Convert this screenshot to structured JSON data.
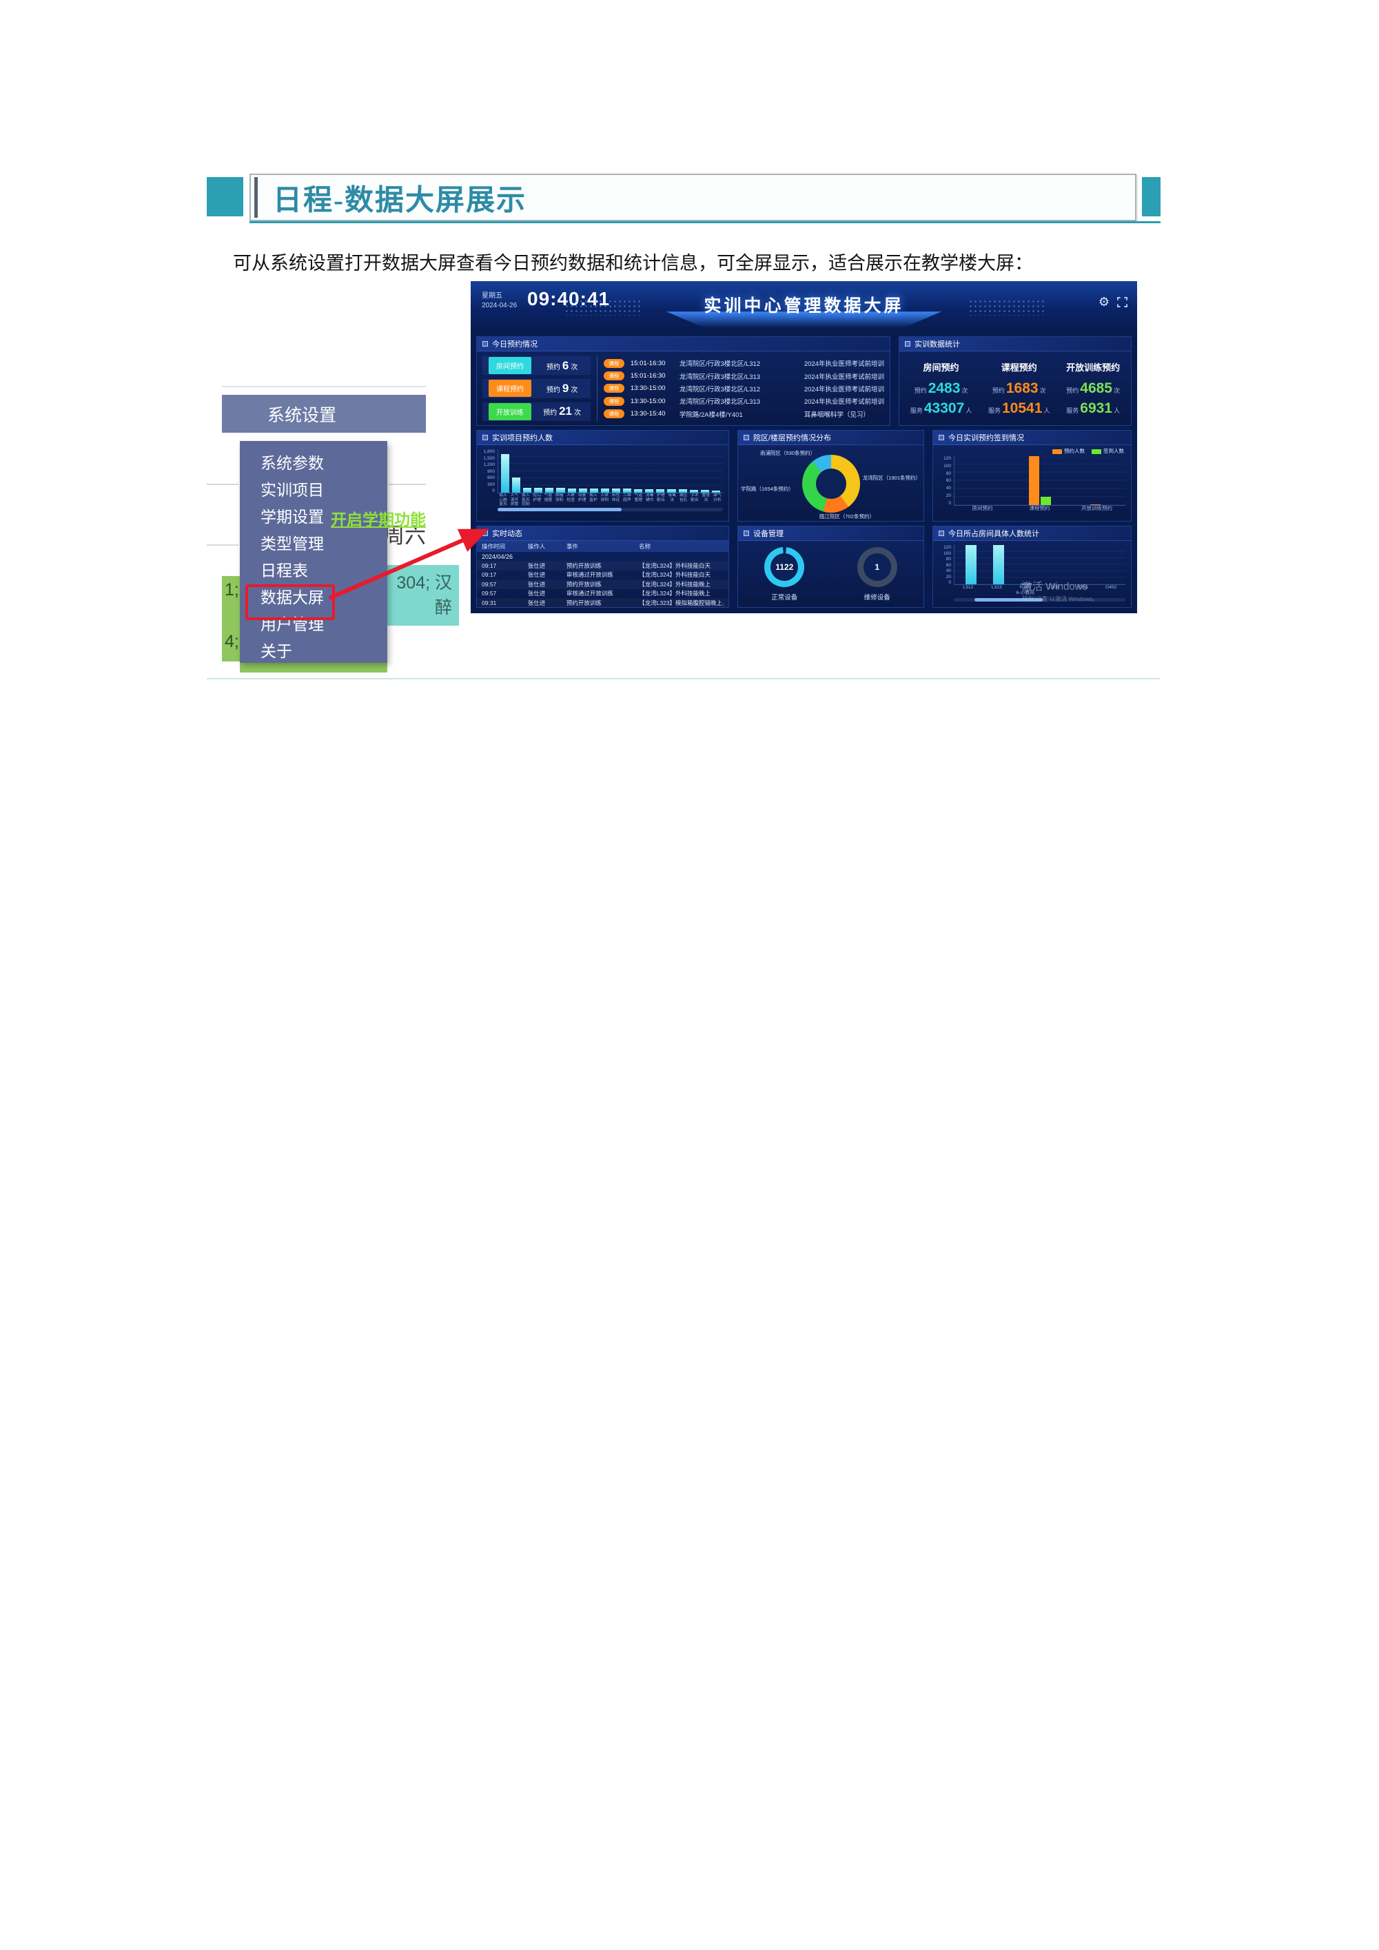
{
  "page": {
    "title": "日程-数据大屏展示",
    "intro": "可从系统设置打开数据大屏查看今日预约数据和统计信息，可全屏显示，适合展示在教学楼大屏："
  },
  "menu": {
    "header": "系统设置",
    "items": [
      "系统参数",
      "实训项目",
      "学期设置",
      "类型管理",
      "日程表",
      "数据大屏",
      "用户管理",
      "关于"
    ],
    "semester_link": "开启学期功能",
    "highlighted_item": "数据大屏",
    "annotation_color": "#e81a2b",
    "background": {
      "weekday": "周六",
      "teal_line1": "304; 汉",
      "teal_line2": "醉",
      "green_frag1": "1;",
      "green_frag2": "4;"
    }
  },
  "dashboard": {
    "weekday": "星期五",
    "date": "2024-04-26",
    "time": "09:40:41",
    "title": "实训中心管理数据大屏",
    "panels": {
      "today": "今日预约情况",
      "stats": "实训数据统计",
      "project": "实训项目预约人数",
      "campus": "院区/楼层预约情况分布",
      "checkin": "今日实训预约签到情况",
      "activity": "实时动态",
      "device": "设备管理",
      "rooms": "今日所占房间具体人数统计"
    },
    "today_stats": [
      {
        "tag": "房间预约",
        "prefix": "预约",
        "count": "6",
        "suffix": "次",
        "color": "#2fd9dd"
      },
      {
        "tag": "课程预约",
        "prefix": "预约",
        "count": "9",
        "suffix": "次",
        "color": "#ff8c1a"
      },
      {
        "tag": "开放训练",
        "prefix": "预约",
        "count": "21",
        "suffix": "次",
        "color": "#3bd94c"
      }
    ],
    "schedule": [
      {
        "tag": "课程",
        "time": "15:01-16:30",
        "location": "龙湾院区/行政3楼北区/L312",
        "name": "2024年执业医师考试前培训"
      },
      {
        "tag": "课程",
        "time": "15:01-16:30",
        "location": "龙湾院区/行政3楼北区/L313",
        "name": "2024年执业医师考试前培训"
      },
      {
        "tag": "课程",
        "time": "13:30-15:00",
        "location": "龙湾院区/行政3楼北区/L312",
        "name": "2024年执业医师考试前培训"
      },
      {
        "tag": "课程",
        "time": "13:30-15:00",
        "location": "龙湾院区/行政3楼北区/L313",
        "name": "2024年执业医师考试前培训"
      },
      {
        "tag": "课程",
        "time": "13:30-15:40",
        "location": "学院路/2A楼4楼/Y401",
        "name": "耳鼻咽喉科学（见习）"
      }
    ],
    "data_stats": [
      {
        "title": "房间预约",
        "r_label": "预约",
        "r_value": "2483",
        "r_unit": "次",
        "s_label": "服务",
        "s_value": "43307",
        "s_unit": "人",
        "color": "#2fd9dd"
      },
      {
        "title": "课程预约",
        "r_label": "预约",
        "r_value": "1683",
        "r_unit": "次",
        "s_label": "服务",
        "s_value": "10541",
        "s_unit": "人",
        "color": "#ff8c1a"
      },
      {
        "title": "开放训练预约",
        "r_label": "预约",
        "r_value": "4685",
        "r_unit": "次",
        "s_label": "服务",
        "s_value": "6931",
        "s_unit": "人",
        "color": "#7ee052"
      }
    ],
    "activity": {
      "headers": [
        "操作时间",
        "操作人",
        "事件",
        "名称"
      ],
      "date_row": "2024/04/26",
      "rows": [
        [
          "09:17",
          "张仕进",
          "预约开放训练",
          "【龙湾L324】外科技能白天"
        ],
        [
          "09:17",
          "张仕进",
          "审核通过开放训练",
          "【龙湾L324】外科技能白天"
        ],
        [
          "09:57",
          "张仕进",
          "预约开放训练",
          "【龙湾L324】外科技能晚上"
        ],
        [
          "09:57",
          "张仕进",
          "审核通过开放训练",
          "【龙湾L324】外科技能晚上"
        ],
        [
          "09:31",
          "张仕进",
          "预约开放训练",
          "【龙湾L323】模拟箱腹腔镜晚上，虚拟"
        ]
      ]
    },
    "devices": [
      {
        "value": "1122",
        "label": "正常设备",
        "color": "#2ec9f2"
      },
      {
        "value": "1",
        "label": "维修设备",
        "color": "#3c4a66"
      }
    ],
    "watermark": {
      "line1": "激活 Windows",
      "line2": "转到“设置”以激活 Windows。"
    }
  },
  "chart_data": [
    {
      "id": "project_reservations",
      "type": "bar",
      "title": "实训项目预约人数",
      "x_labels_legible": false,
      "categories": [
        "成人心肺\n复苏",
        "人气道开\n放管理",
        "婴人复苏\n控制",
        "腔口护理",
        "气管插管",
        "肿瘤穿刺",
        "人群检查",
        "母婴护理",
        "成人监护",
        "人体穿刺",
        "阳性体征",
        "二维超声",
        "气道管理",
        "消毒铺巾",
        "护理配合",
        "吸氧法",
        "减压包扎",
        "手术配合",
        "置管法",
        "血气分析"
      ],
      "values": [
        1600,
        620,
        205,
        200,
        195,
        190,
        185,
        180,
        175,
        170,
        165,
        160,
        155,
        150,
        145,
        140,
        130,
        120,
        110,
        100
      ],
      "ylim": [
        0,
        1800
      ],
      "yticks": [
        "1,800",
        "1,500",
        "1,200",
        "900",
        "600",
        "300",
        "0"
      ],
      "bar_color": "#35dfe8",
      "grid": true,
      "scrollbar": {
        "left_pct": 0,
        "width_pct": 55
      }
    },
    {
      "id": "campus_distribution",
      "type": "pie",
      "title": "院区/楼层预约情况分布",
      "slices": [
        {
          "label": "龙湾院区",
          "value": 1901,
          "text": "龙湾院区（1901条预约）",
          "color": "#f5c518"
        },
        {
          "label": "瓯江院区",
          "value": 702,
          "text": "瓯江院区（702条预约）",
          "color": "#ff7a1a"
        },
        {
          "label": "学院路",
          "value": 1654,
          "text": "学院路（1654条预约）",
          "color": "#35d54a"
        },
        {
          "label": "南浦院区",
          "value": 530,
          "text": "南浦院区（530条预约）",
          "color": "#35b8f0"
        }
      ]
    },
    {
      "id": "today_checkin",
      "type": "bar",
      "title": "今日实训预约签到情况",
      "categories": [
        "房间预约",
        "课程预约",
        "开放训练预约"
      ],
      "series": [
        {
          "name": "预约人数",
          "color": "#ff8c1a",
          "values": [
            0,
            120,
            2
          ]
        },
        {
          "name": "签到人数",
          "color": "#6ee82a",
          "values": [
            0,
            20,
            0
          ]
        }
      ],
      "ylim": [
        0,
        120
      ],
      "yticks": [
        "120",
        "100",
        "80",
        "60",
        "40",
        "20",
        "0"
      ],
      "legend_position": "top-right",
      "grid": true
    },
    {
      "id": "room_occupancy",
      "type": "bar",
      "title": "今日所占房间具体人数统计",
      "categories": [
        "L312",
        "L313",
        "N160\n6-小教间",
        "L309",
        "Y363",
        "O452"
      ],
      "values": [
        120,
        120,
        2,
        0,
        0,
        0
      ],
      "ylim": [
        0,
        120
      ],
      "yticks": [
        "120",
        "100",
        "80",
        "60",
        "40",
        "20",
        "0"
      ],
      "bar_color": "#4fd8e8",
      "grid": true,
      "scrollbar": {
        "left_pct": 12,
        "width_pct": 40
      }
    }
  ]
}
